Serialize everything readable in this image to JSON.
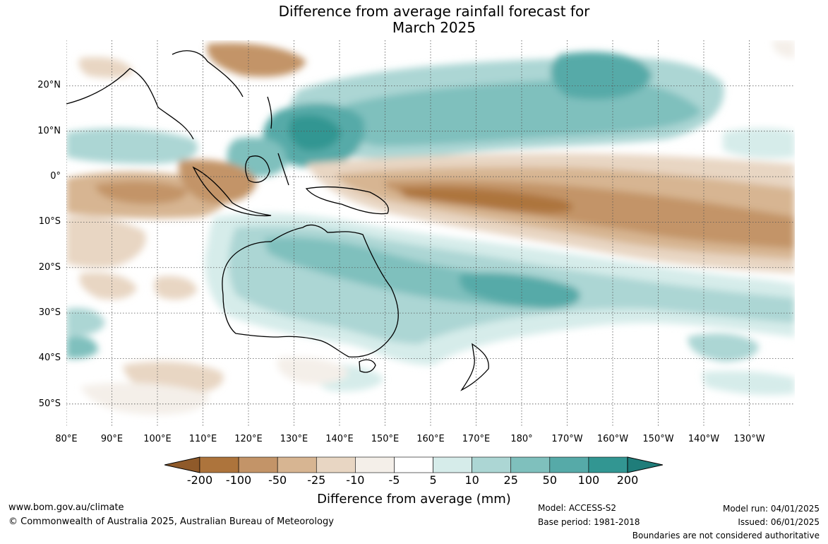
{
  "title_line1": "Difference from average rainfall forecast for",
  "title_line2": "March 2025",
  "lat_labels": [
    "20°N",
    "10°N",
    "0°",
    "10°S",
    "20°S",
    "30°S",
    "40°S",
    "50°S"
  ],
  "lat_values": [
    20,
    10,
    0,
    -10,
    -20,
    -30,
    -40,
    -50
  ],
  "lon_labels": [
    "80°E",
    "90°E",
    "100°E",
    "110°E",
    "120°E",
    "130°E",
    "140°E",
    "150°E",
    "160°E",
    "170°E",
    "180°",
    "170°W",
    "160°W",
    "150°W",
    "140°W",
    "130°W"
  ],
  "lon_values": [
    80,
    90,
    100,
    110,
    120,
    130,
    140,
    150,
    160,
    170,
    180,
    190,
    200,
    210,
    220,
    230
  ],
  "map_extent": {
    "lon": [
      80,
      240
    ],
    "lat": [
      -55,
      30
    ]
  },
  "colorbar": {
    "labels": [
      "-200",
      "-100",
      "-50",
      "-25",
      "-10",
      "-5",
      "5",
      "10",
      "25",
      "50",
      "100",
      "200"
    ],
    "colors": [
      "#8f5a2a",
      "#ad743c",
      "#c39468",
      "#d7b592",
      "#e8d6c3",
      "#f4efe9",
      "#ffffff",
      "#d6ecea",
      "#acd6d4",
      "#7fc0bd",
      "#56aaa8",
      "#329692",
      "#1f7d7a"
    ],
    "title": "Difference from average (mm)"
  },
  "footer": {
    "website": "www.bom.gov.au/climate",
    "copyright": "© Commonwealth of Australia 2025, Australian Bureau of Meteorology",
    "model": "Model: ACCESS-S2",
    "base_period": "Base period: 1981-2018",
    "model_run": "Model run: 04/01/2025",
    "issued": "Issued: 06/01/2025",
    "disclaimer": "Boundaries are not considered authoritative"
  }
}
